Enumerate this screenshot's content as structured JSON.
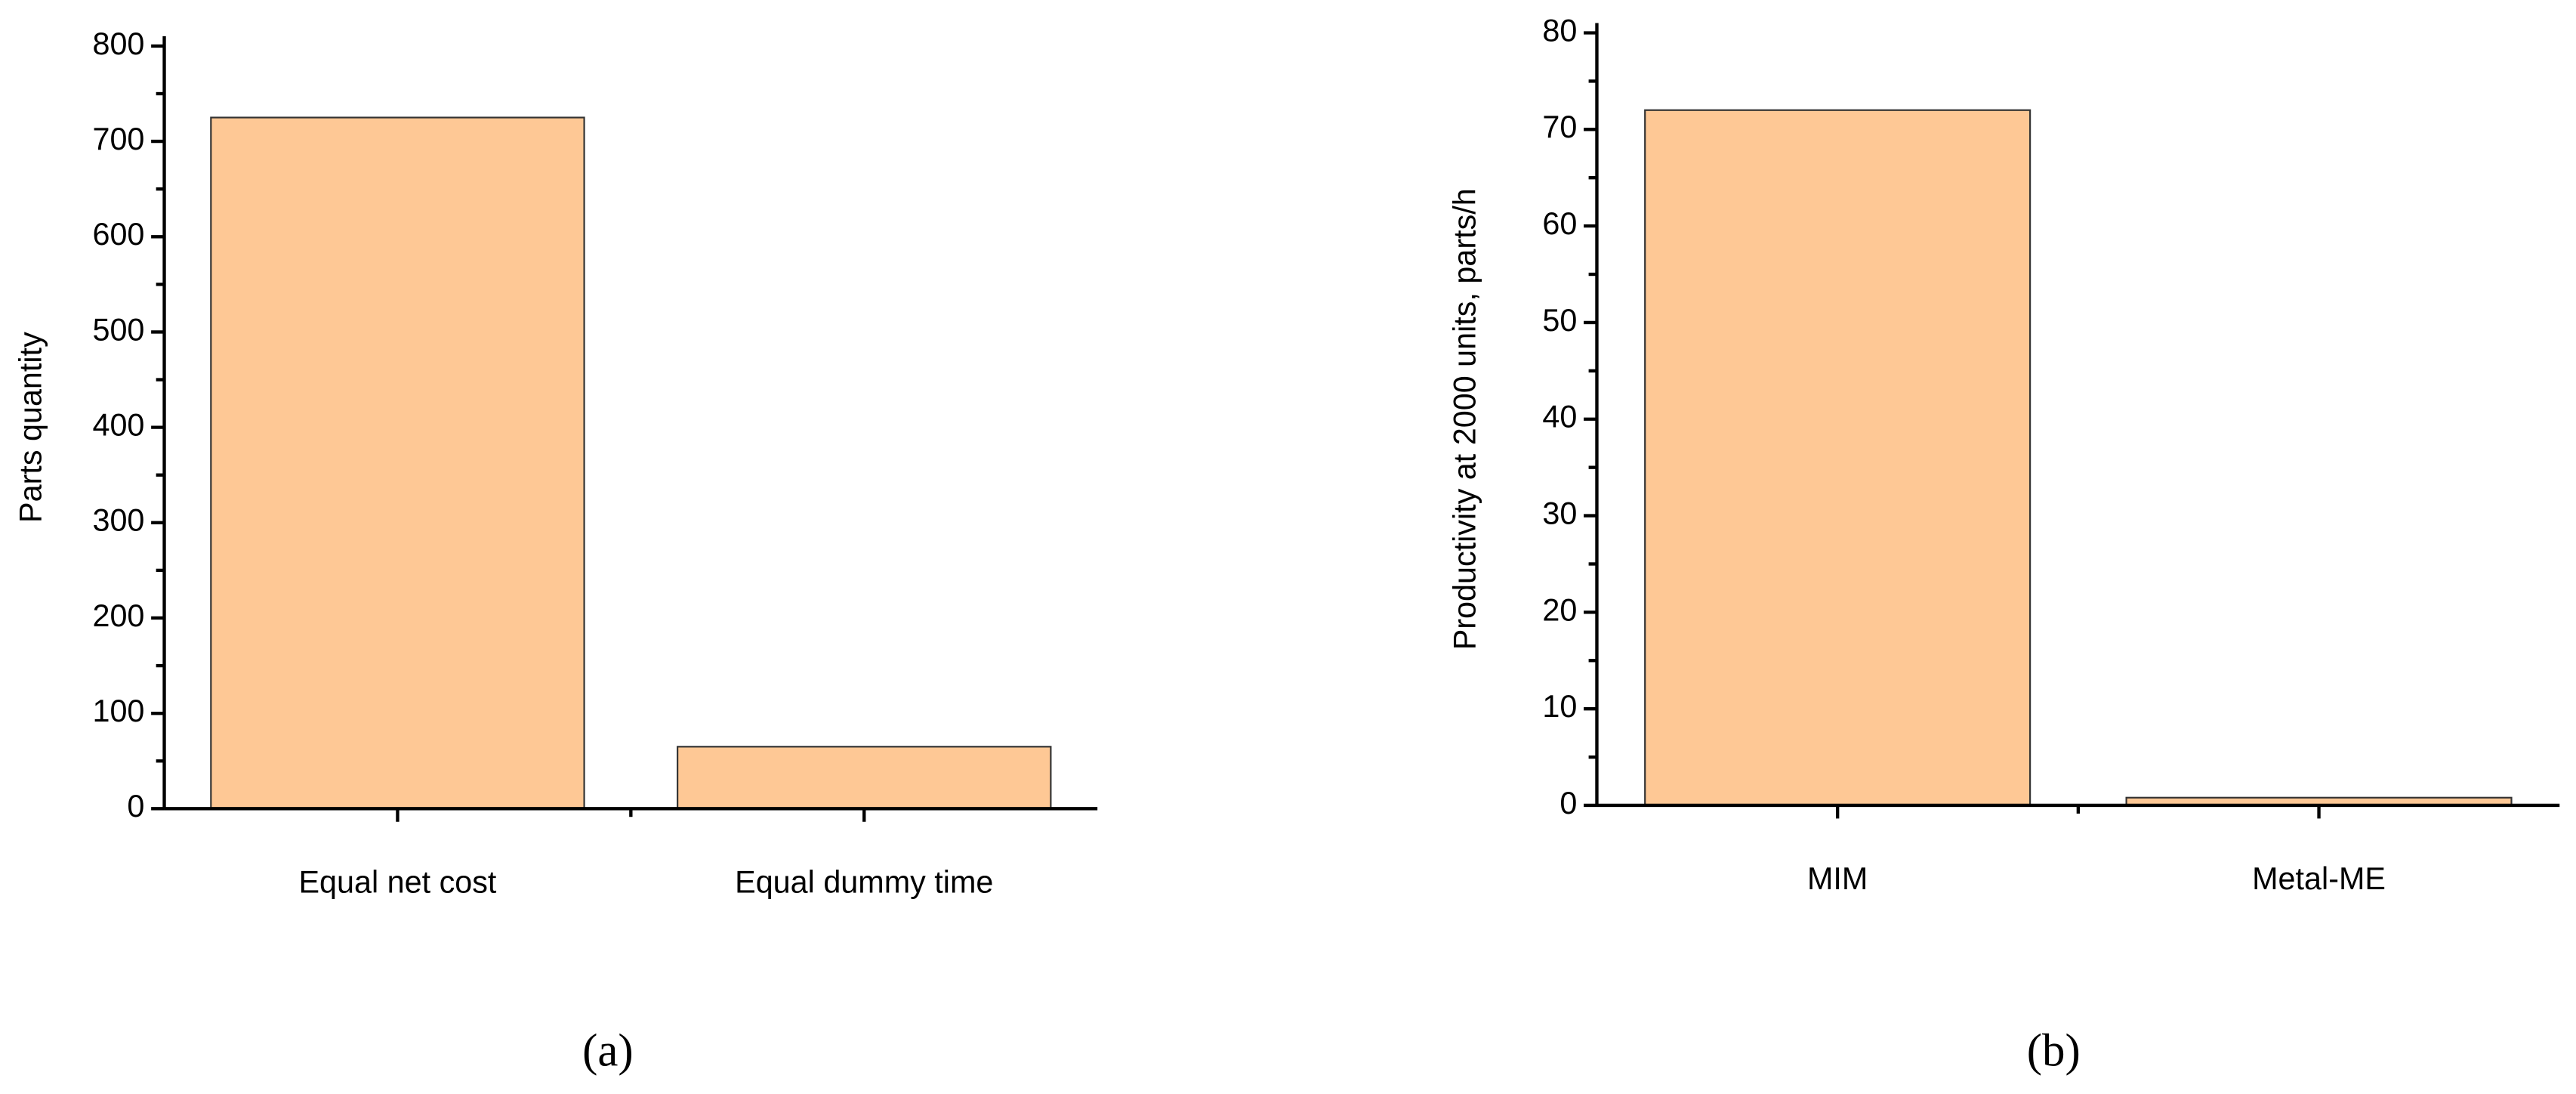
{
  "chart_data": [
    {
      "type": "bar",
      "categories": [
        "Equal net cost",
        "Equal dummy time"
      ],
      "values": [
        725,
        65
      ],
      "color": "#fec895",
      "ylabel": "Parts quantity",
      "ylim": [
        0,
        800
      ],
      "yticks": [
        0,
        100,
        200,
        300,
        400,
        500,
        600,
        700,
        800
      ],
      "caption": "(a)"
    },
    {
      "type": "bar",
      "categories": [
        "MIM",
        "Metal-ME"
      ],
      "values": [
        72,
        0.8
      ],
      "color": "#fec895",
      "ylabel": "Productivity at 2000 units, parts/h",
      "ylim": [
        0,
        80
      ],
      "yticks": [
        0,
        10,
        20,
        30,
        40,
        50,
        60,
        70,
        80
      ],
      "caption": "(b)"
    }
  ]
}
